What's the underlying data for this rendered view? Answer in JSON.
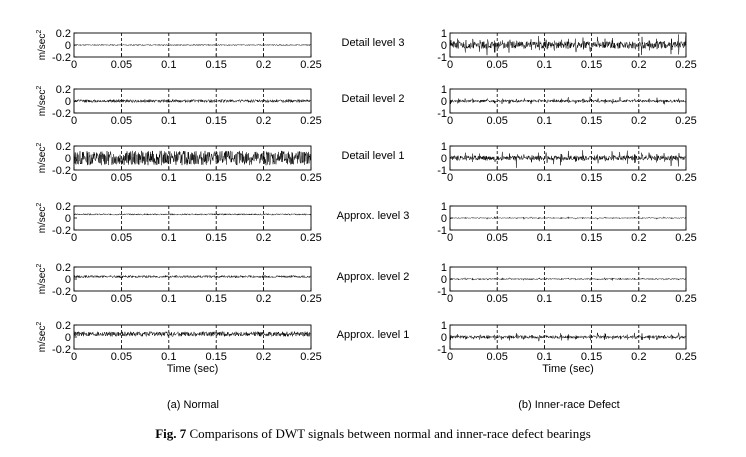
{
  "figure": {
    "caption_label": "Fig. 7",
    "caption_text": "Comparisons of DWT signals between normal and inner-race defect bearings",
    "panel_a_label": "(a) Normal",
    "panel_b_label": "(b) Inner-race Defect",
    "row_labels": [
      "Detail level 3",
      "Detail level 2",
      "Detail level 1",
      "Approx. level 3",
      "Approx. level 2",
      "Approx. level 1"
    ],
    "ylabel_left": "m/sec",
    "ylabel_left_superscript": "2",
    "xlabel": "Time (sec)"
  },
  "chart_data": [
    {
      "type": "line",
      "panel": "(a) Normal",
      "title": "Detail level 3",
      "xlim": [
        0,
        0.25
      ],
      "ylim": [
        -0.2,
        0.2
      ],
      "xticks": [
        "0",
        "0.05",
        "0.1",
        "0.15",
        "0.2",
        "0.25"
      ],
      "yticks": [
        "0.2",
        "0",
        "-0.2"
      ],
      "ylabel": "m/sec2",
      "xlabel": "",
      "vgrid_dashed": true,
      "signal": {
        "center": 0,
        "amplitude": 0.01,
        "seed": 11
      }
    },
    {
      "type": "line",
      "panel": "(a) Normal",
      "title": "Detail level 2",
      "xlim": [
        0,
        0.25
      ],
      "ylim": [
        -0.2,
        0.2
      ],
      "xticks": [
        "0",
        "0.05",
        "0.1",
        "0.15",
        "0.2",
        "0.25"
      ],
      "yticks": [
        "0.2",
        "0",
        "-0.2"
      ],
      "ylabel": "m/sec2",
      "xlabel": "",
      "vgrid_dashed": true,
      "signal": {
        "center": 0,
        "amplitude": 0.025,
        "seed": 12
      }
    },
    {
      "type": "line",
      "panel": "(a) Normal",
      "title": "Detail level 1",
      "xlim": [
        0,
        0.25
      ],
      "ylim": [
        -0.2,
        0.2
      ],
      "xticks": [
        "0",
        "0.05",
        "0.1",
        "0.15",
        "0.2",
        "0.25"
      ],
      "yticks": [
        "0.2",
        "0",
        "-0.2"
      ],
      "ylabel": "m/sec2",
      "xlabel": "",
      "vgrid_dashed": true,
      "signal": {
        "center": 0,
        "amplitude": 0.12,
        "seed": 13
      }
    },
    {
      "type": "line",
      "panel": "(a) Normal",
      "title": "Approx. level 3",
      "xlim": [
        0,
        0.25
      ],
      "ylim": [
        -0.2,
        0.2
      ],
      "xticks": [
        "0",
        "0.05",
        "0.1",
        "0.15",
        "0.2",
        "0.25"
      ],
      "yticks": [
        "0.2",
        "0",
        "-0.2"
      ],
      "ylabel": "m/sec2",
      "xlabel": "",
      "vgrid_dashed": true,
      "signal": {
        "center": 0.06,
        "amplitude": 0.012,
        "seed": 14
      }
    },
    {
      "type": "line",
      "panel": "(a) Normal",
      "title": "Approx. level 2",
      "xlim": [
        0,
        0.25
      ],
      "ylim": [
        -0.2,
        0.2
      ],
      "xticks": [
        "0",
        "0.05",
        "0.1",
        "0.15",
        "0.2",
        "0.25"
      ],
      "yticks": [
        "0.2",
        "0",
        "-0.2"
      ],
      "ylabel": "m/sec2",
      "xlabel": "",
      "vgrid_dashed": true,
      "signal": {
        "center": 0.04,
        "amplitude": 0.02,
        "seed": 15
      }
    },
    {
      "type": "line",
      "panel": "(a) Normal",
      "title": "Approx. level 1",
      "xlim": [
        0,
        0.25
      ],
      "ylim": [
        -0.2,
        0.2
      ],
      "xticks": [
        "0",
        "0.05",
        "0.1",
        "0.15",
        "0.2",
        "0.25"
      ],
      "yticks": [
        "0.2",
        "0",
        "-0.2"
      ],
      "ylabel": "m/sec2",
      "xlabel": "Time (sec)",
      "vgrid_dashed": true,
      "signal": {
        "center": 0.05,
        "amplitude": 0.04,
        "seed": 16
      }
    },
    {
      "type": "line",
      "panel": "(b) Inner-race Defect",
      "title": "Detail level 3",
      "xlim": [
        0,
        0.25
      ],
      "ylim": [
        -1,
        1
      ],
      "xticks": [
        "0",
        "0.05",
        "0.1",
        "0.15",
        "0.2",
        "0.25"
      ],
      "yticks": [
        "1",
        "0",
        "-1"
      ],
      "ylabel": "",
      "xlabel": "",
      "vgrid_dashed": true,
      "signal": {
        "center": 0,
        "amplitude": 0.3,
        "burst": 0.7,
        "seed": 21
      }
    },
    {
      "type": "line",
      "panel": "(b) Inner-race Defect",
      "title": "Detail level 2",
      "xlim": [
        0,
        0.25
      ],
      "ylim": [
        -1,
        1
      ],
      "xticks": [
        "0",
        "0.05",
        "0.1",
        "0.15",
        "0.2",
        "0.25"
      ],
      "yticks": [
        "1",
        "0",
        "-1"
      ],
      "ylabel": "",
      "xlabel": "",
      "vgrid_dashed": true,
      "signal": {
        "center": 0,
        "amplitude": 0.1,
        "burst": 0.35,
        "seed": 22
      }
    },
    {
      "type": "line",
      "panel": "(b) Inner-race Defect",
      "title": "Detail level 1",
      "xlim": [
        0,
        0.25
      ],
      "ylim": [
        -1,
        1
      ],
      "xticks": [
        "0",
        "0.05",
        "0.1",
        "0.15",
        "0.2",
        "0.25"
      ],
      "yticks": [
        "1",
        "0",
        "-1"
      ],
      "ylabel": "",
      "xlabel": "",
      "vgrid_dashed": true,
      "signal": {
        "center": 0,
        "amplitude": 0.2,
        "burst": 0.7,
        "seed": 23
      }
    },
    {
      "type": "line",
      "panel": "(b) Inner-race Defect",
      "title": "Approx. level 3",
      "xlim": [
        0,
        0.25
      ],
      "ylim": [
        -1,
        1
      ],
      "xticks": [
        "0",
        "0.05",
        "0.1",
        "0.15",
        "0.2",
        "0.25"
      ],
      "yticks": [
        "1",
        "0",
        "-1"
      ],
      "ylabel": "",
      "xlabel": "",
      "vgrid_dashed": true,
      "signal": {
        "center": 0,
        "amplitude": 0.03,
        "burst": 0.12,
        "seed": 24
      }
    },
    {
      "type": "line",
      "panel": "(b) Inner-race Defect",
      "title": "Approx. level 2",
      "xlim": [
        0,
        0.25
      ],
      "ylim": [
        -1,
        1
      ],
      "xticks": [
        "0",
        "0.05",
        "0.1",
        "0.15",
        "0.2",
        "0.25"
      ],
      "yticks": [
        "1",
        "0",
        "-1"
      ],
      "ylabel": "",
      "xlabel": "",
      "vgrid_dashed": true,
      "signal": {
        "center": 0,
        "amplitude": 0.05,
        "burst": 0.1,
        "seed": 25
      }
    },
    {
      "type": "line",
      "panel": "(b) Inner-race Defect",
      "title": "Approx. level 1",
      "xlim": [
        0,
        0.25
      ],
      "ylim": [
        -1,
        1
      ],
      "xticks": [
        "0",
        "0.05",
        "0.1",
        "0.15",
        "0.2",
        "0.25"
      ],
      "yticks": [
        "1",
        "0",
        "-1"
      ],
      "ylabel": "",
      "xlabel": "Time (sec)",
      "vgrid_dashed": true,
      "signal": {
        "center": 0,
        "amplitude": 0.12,
        "burst": 0.35,
        "seed": 26
      }
    }
  ]
}
